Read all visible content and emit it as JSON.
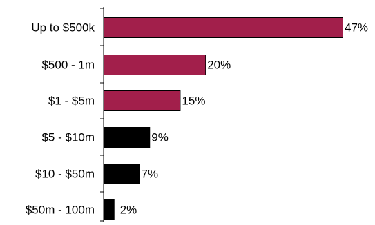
{
  "chart_data": {
    "type": "bar",
    "orientation": "horizontal",
    "categories": [
      "Up to $500k",
      "$500 - 1m",
      "$1 - $5m",
      "$5 - $10m",
      "$10 - $50m",
      "$50m - 100m"
    ],
    "values": [
      47,
      20,
      15,
      9,
      7,
      2
    ],
    "value_labels": [
      "47%",
      "20%",
      "15%",
      "9%",
      "7%",
      "2%"
    ],
    "bar_colors": [
      "#A21F4B",
      "#A21F4B",
      "#A21F4B",
      "#000000",
      "#000000",
      "#000000"
    ],
    "xlim": [
      0,
      47
    ],
    "title": "",
    "xlabel": "",
    "ylabel": "",
    "grid": false,
    "legend": "none"
  }
}
